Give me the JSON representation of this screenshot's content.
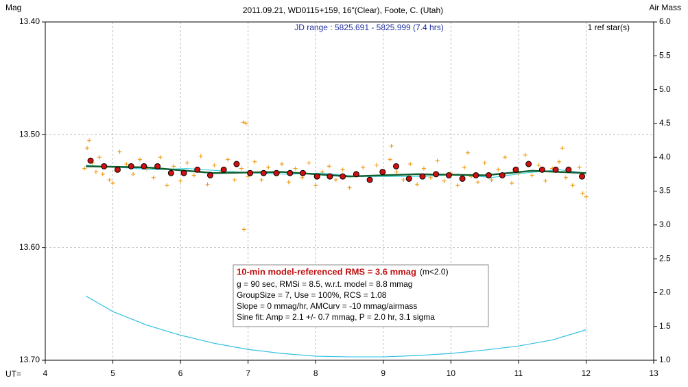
{
  "chart_data": {
    "type": "scatter",
    "title": "2011.09.21, WD0115+159, 16\"(Clear), Foote, C. (Utah)",
    "y_label": "Mag",
    "y2_label": "Air Mass",
    "x_label": "UT=",
    "jd_range": "JD range : 5825.691 - 5825.999 (7.4 hrs)",
    "ref_stars": "1 ref star(s)",
    "stats_box": {
      "headline": "10-min model-referenced RMS = 3.6 mmag",
      "headline_note": "(m<2.0)",
      "lines": [
        "g = 90 sec, RMSi = 8.5, w.r.t. model = 8.8 mmag",
        "GroupSize = 7, Use = 100%, RCS = 1.08",
        "Slope = 0 mmag/hr, AMCurv = -10 mmag/airmass",
        "Sine fit: Amp = 2.1 +/- 0.7 mmag, P = 2.0 hr, 3.1 sigma"
      ]
    },
    "xlim": [
      4,
      13
    ],
    "xticks": [
      4,
      5,
      6,
      7,
      8,
      9,
      10,
      11,
      12,
      13
    ],
    "ylim": [
      13.4,
      13.7
    ],
    "y_inverted": true,
    "yticks": [
      {
        "value": 13.4,
        "label": "13.40"
      },
      {
        "value": 13.5,
        "label": "13.50"
      },
      {
        "value": 13.6,
        "label": "13.60"
      },
      {
        "value": 13.7,
        "label": "13.70"
      }
    ],
    "y2lim": [
      1,
      6
    ],
    "y2ticks": [
      {
        "value": 1,
        "label": "1.0"
      },
      1.5,
      {
        "value": 2,
        "label": "2.0"
      },
      2.5,
      {
        "value": 3,
        "label": "3.0"
      },
      3.5,
      {
        "value": 4,
        "label": "4.0"
      },
      4.5,
      {
        "value": 5,
        "label": "5.0"
      },
      5.5,
      {
        "value": 6,
        "label": "6.0"
      }
    ],
    "grid": true,
    "series": [
      {
        "style": "plus",
        "color": "#f0a020",
        "x": [
          4.58,
          4.62,
          4.65,
          4.7,
          4.75,
          4.8,
          4.85,
          4.9,
          4.95,
          5.0,
          5.05,
          5.1,
          5.2,
          5.3,
          5.4,
          5.5,
          5.6,
          5.7,
          5.8,
          5.9,
          6.0,
          6.1,
          6.2,
          6.3,
          6.4,
          6.5,
          6.6,
          6.7,
          6.8,
          6.9,
          6.93,
          6.94,
          6.97,
          7.0,
          7.1,
          7.2,
          7.3,
          7.4,
          7.5,
          7.6,
          7.7,
          7.8,
          7.9,
          8.0,
          8.1,
          8.2,
          8.3,
          8.4,
          8.5,
          8.6,
          8.7,
          8.8,
          8.9,
          9.0,
          9.1,
          9.12,
          9.2,
          9.3,
          9.4,
          9.5,
          9.6,
          9.7,
          9.8,
          9.9,
          10.0,
          10.1,
          10.2,
          10.25,
          10.3,
          10.4,
          10.5,
          10.6,
          10.7,
          10.8,
          10.9,
          11.0,
          11.1,
          11.2,
          11.3,
          11.4,
          11.5,
          11.6,
          11.65,
          11.7,
          11.8,
          11.9,
          11.95,
          12.0
        ],
        "values": [
          13.53,
          13.512,
          13.505,
          13.525,
          13.533,
          13.52,
          13.535,
          13.528,
          13.54,
          13.543,
          13.532,
          13.515,
          13.526,
          13.535,
          13.522,
          13.53,
          13.538,
          13.52,
          13.545,
          13.528,
          13.541,
          13.525,
          13.536,
          13.519,
          13.544,
          13.527,
          13.533,
          13.522,
          13.54,
          13.53,
          13.489,
          13.584,
          13.49,
          13.537,
          13.524,
          13.54,
          13.529,
          13.535,
          13.526,
          13.542,
          13.53,
          13.538,
          13.525,
          13.545,
          13.533,
          13.528,
          13.54,
          13.531,
          13.547,
          13.536,
          13.529,
          13.541,
          13.527,
          13.535,
          13.522,
          13.51,
          13.533,
          13.54,
          13.526,
          13.544,
          13.53,
          13.538,
          13.523,
          13.541,
          13.534,
          13.545,
          13.529,
          13.516,
          13.537,
          13.542,
          13.525,
          13.54,
          13.531,
          13.52,
          13.543,
          13.534,
          13.518,
          13.536,
          13.527,
          13.541,
          13.53,
          13.524,
          13.512,
          13.538,
          13.545,
          13.529,
          13.552,
          13.555
        ]
      },
      {
        "style": "line",
        "color": "#40d0e0",
        "x": [
          4.6,
          5.1,
          5.6,
          6.1,
          6.6,
          7.1,
          7.6,
          8.1,
          8.6,
          9.1,
          9.6,
          10.1,
          10.6,
          11.1,
          11.6,
          12.0
        ],
        "values": [
          13.527,
          13.529,
          13.531,
          13.53,
          13.532,
          13.534,
          13.535,
          13.534,
          13.537,
          13.537,
          13.537,
          13.535,
          13.538,
          13.534,
          13.531,
          13.534
        ]
      },
      {
        "style": "thick",
        "color": "#106030",
        "x": [
          4.6,
          5.5,
          6.5,
          7.5,
          8.5,
          9.5,
          10.5,
          11.2,
          12.0
        ],
        "values": [
          13.528,
          13.529,
          13.534,
          13.533,
          13.537,
          13.535,
          13.536,
          13.532,
          13.534
        ]
      },
      {
        "style": "circle",
        "color": "#d01010",
        "x": [
          4.67,
          4.87,
          5.07,
          5.27,
          5.46,
          5.66,
          5.86,
          6.05,
          6.25,
          6.44,
          6.64,
          6.83,
          7.03,
          7.23,
          7.42,
          7.62,
          7.81,
          8.02,
          8.21,
          8.4,
          8.6,
          8.8,
          8.99,
          9.19,
          9.38,
          9.58,
          9.78,
          9.97,
          10.17,
          10.37,
          10.56,
          10.76,
          10.96,
          11.15,
          11.35,
          11.55,
          11.74,
          11.94
        ],
        "values": [
          13.523,
          13.528,
          13.531,
          13.528,
          13.528,
          13.528,
          13.534,
          13.534,
          13.531,
          13.536,
          13.531,
          13.526,
          13.534,
          13.534,
          13.534,
          13.534,
          13.534,
          13.537,
          13.537,
          13.537,
          13.535,
          13.54,
          13.533,
          13.528,
          13.539,
          13.537,
          13.535,
          13.536,
          13.539,
          13.536,
          13.536,
          13.536,
          13.531,
          13.526,
          13.531,
          13.531,
          13.531,
          13.537
        ]
      },
      {
        "style": "line",
        "axis": "y2",
        "color": "#30c0e0",
        "x": [
          4.6,
          5.0,
          5.5,
          6.0,
          6.5,
          7.0,
          7.5,
          8.0,
          8.5,
          9.0,
          9.5,
          10.0,
          10.5,
          11.0,
          11.5,
          12.0
        ],
        "values": [
          1.95,
          1.72,
          1.52,
          1.37,
          1.25,
          1.16,
          1.1,
          1.06,
          1.05,
          1.05,
          1.07,
          1.1,
          1.15,
          1.21,
          1.3,
          1.45
        ]
      }
    ]
  }
}
